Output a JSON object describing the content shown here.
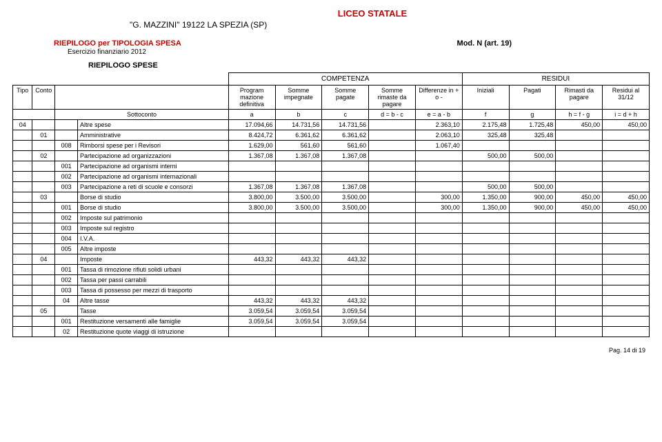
{
  "header": {
    "title": "LICEO STATALE",
    "subtitle": "\"G. MAZZINI\"  19122  LA SPEZIA (SP)",
    "section_title": "RIEPILOGO per TIPOLOGIA SPESA",
    "mod": "Mod. N (art. 19)",
    "exercise": "Esercizio finanziario 2012",
    "block": "RIEPILOGO SPESE",
    "group_comp": "COMPETENZA",
    "group_res": "RESIDUI"
  },
  "columns": {
    "tipo": "Tipo",
    "conto": "Conto",
    "sottoconto_label": "Sottoconto",
    "a": "Program mazione definitiva",
    "b": "Somme impegnate",
    "c": "Somme pagate",
    "d": "Somme rimaste da pagare",
    "e": "Differenze in + o -",
    "f": "Iniziali",
    "g": "Pagati",
    "h": "Rimasti da pagare",
    "i": "Residui al 31/12"
  },
  "formula_row": {
    "a": "a",
    "b": "b",
    "c": "c",
    "d": "d = b - c",
    "e": "e = a - b",
    "f": "f",
    "g": "g",
    "h": "h = f - g",
    "i": "i = d + h"
  },
  "rows": [
    {
      "tipo": "04",
      "conto": "",
      "sc": "",
      "desc": "Altre spese",
      "a": "17.094,66",
      "b": "14.731,56",
      "c": "14.731,56",
      "d": "",
      "e": "2.363,10",
      "f": "2.175,48",
      "g": "1.725,48",
      "h": "450,00",
      "i": "450,00"
    },
    {
      "tipo": "",
      "conto": "01",
      "sc": "",
      "desc": "Amministrative",
      "a": "8.424,72",
      "b": "6.361,62",
      "c": "6.361,62",
      "d": "",
      "e": "2.063,10",
      "f": "325,48",
      "g": "325,48",
      "h": "",
      "i": ""
    },
    {
      "tipo": "",
      "conto": "",
      "sc": "008",
      "desc": "Rimborsi spese per i Revisori",
      "a": "1.629,00",
      "b": "561,60",
      "c": "561,60",
      "d": "",
      "e": "1.067,40",
      "f": "",
      "g": "",
      "h": "",
      "i": ""
    },
    {
      "tipo": "",
      "conto": "02",
      "sc": "",
      "desc": "Partecipazione ad organizzazioni",
      "a": "1.367,08",
      "b": "1.367,08",
      "c": "1.367,08",
      "d": "",
      "e": "",
      "f": "500,00",
      "g": "500,00",
      "h": "",
      "i": ""
    },
    {
      "tipo": "",
      "conto": "",
      "sc": "001",
      "desc": "Partecipazione ad organismi interni",
      "a": "",
      "b": "",
      "c": "",
      "d": "",
      "e": "",
      "f": "",
      "g": "",
      "h": "",
      "i": ""
    },
    {
      "tipo": "",
      "conto": "",
      "sc": "002",
      "desc": "Partecipazione ad organismi internazionali",
      "a": "",
      "b": "",
      "c": "",
      "d": "",
      "e": "",
      "f": "",
      "g": "",
      "h": "",
      "i": ""
    },
    {
      "tipo": "",
      "conto": "",
      "sc": "003",
      "desc": "Partecipazione a reti di scuole e consorzi",
      "a": "1.367,08",
      "b": "1.367,08",
      "c": "1.367,08",
      "d": "",
      "e": "",
      "f": "500,00",
      "g": "500,00",
      "h": "",
      "i": ""
    },
    {
      "tipo": "",
      "conto": "03",
      "sc": "",
      "desc": "Borse di studio",
      "a": "3.800,00",
      "b": "3.500,00",
      "c": "3.500,00",
      "d": "",
      "e": "300,00",
      "f": "1.350,00",
      "g": "900,00",
      "h": "450,00",
      "i": "450,00"
    },
    {
      "tipo": "",
      "conto": "",
      "sc": "001",
      "desc": "Borse di studio",
      "a": "3.800,00",
      "b": "3.500,00",
      "c": "3.500,00",
      "d": "",
      "e": "300,00",
      "f": "1.350,00",
      "g": "900,00",
      "h": "450,00",
      "i": "450,00"
    },
    {
      "tipo": "",
      "conto": "",
      "sc": "002",
      "desc": "Imposte sul patrimonio",
      "a": "",
      "b": "",
      "c": "",
      "d": "",
      "e": "",
      "f": "",
      "g": "",
      "h": "",
      "i": ""
    },
    {
      "tipo": "",
      "conto": "",
      "sc": "003",
      "desc": "Imposte sul registro",
      "a": "",
      "b": "",
      "c": "",
      "d": "",
      "e": "",
      "f": "",
      "g": "",
      "h": "",
      "i": ""
    },
    {
      "tipo": "",
      "conto": "",
      "sc": "004",
      "desc": "I.V.A.",
      "a": "",
      "b": "",
      "c": "",
      "d": "",
      "e": "",
      "f": "",
      "g": "",
      "h": "",
      "i": ""
    },
    {
      "tipo": "",
      "conto": "",
      "sc": "005",
      "desc": "Altre imposte",
      "a": "",
      "b": "",
      "c": "",
      "d": "",
      "e": "",
      "f": "",
      "g": "",
      "h": "",
      "i": ""
    },
    {
      "tipo": "",
      "conto": "04",
      "sc": "",
      "desc": "Imposte",
      "a": "443,32",
      "b": "443,32",
      "c": "443,32",
      "d": "",
      "e": "",
      "f": "",
      "g": "",
      "h": "",
      "i": ""
    },
    {
      "tipo": "",
      "conto": "",
      "sc": "001",
      "desc": "Tassa di rimozione rifiuti solidi urbani",
      "a": "",
      "b": "",
      "c": "",
      "d": "",
      "e": "",
      "f": "",
      "g": "",
      "h": "",
      "i": ""
    },
    {
      "tipo": "",
      "conto": "",
      "sc": "002",
      "desc": "Tassa per passi carrabili",
      "a": "",
      "b": "",
      "c": "",
      "d": "",
      "e": "",
      "f": "",
      "g": "",
      "h": "",
      "i": ""
    },
    {
      "tipo": "",
      "conto": "",
      "sc": "003",
      "desc": "Tassa di possesso per mezzi di trasporto",
      "a": "",
      "b": "",
      "c": "",
      "d": "",
      "e": "",
      "f": "",
      "g": "",
      "h": "",
      "i": ""
    },
    {
      "tipo": "",
      "conto": "",
      "sc": "04",
      "desc": "Altre tasse",
      "a": "443,32",
      "b": "443,32",
      "c": "443,32",
      "d": "",
      "e": "",
      "f": "",
      "g": "",
      "h": "",
      "i": ""
    },
    {
      "tipo": "",
      "conto": "05",
      "sc": "",
      "desc": "Tasse",
      "a": "3.059,54",
      "b": "3.059,54",
      "c": "3.059,54",
      "d": "",
      "e": "",
      "f": "",
      "g": "",
      "h": "",
      "i": ""
    },
    {
      "tipo": "",
      "conto": "",
      "sc": "001",
      "desc": "Restituzione versamenti alle famiglie",
      "a": "3.059,54",
      "b": "3.059,54",
      "c": "3.059,54",
      "d": "",
      "e": "",
      "f": "",
      "g": "",
      "h": "",
      "i": ""
    },
    {
      "tipo": "",
      "conto": "",
      "sc": "02",
      "desc": "Restituzione quote viaggi di istruzione",
      "a": "",
      "b": "",
      "c": "",
      "d": "",
      "e": "",
      "f": "",
      "g": "",
      "h": "",
      "i": ""
    }
  ],
  "footer": {
    "page": "Pag. 14 di 19"
  }
}
